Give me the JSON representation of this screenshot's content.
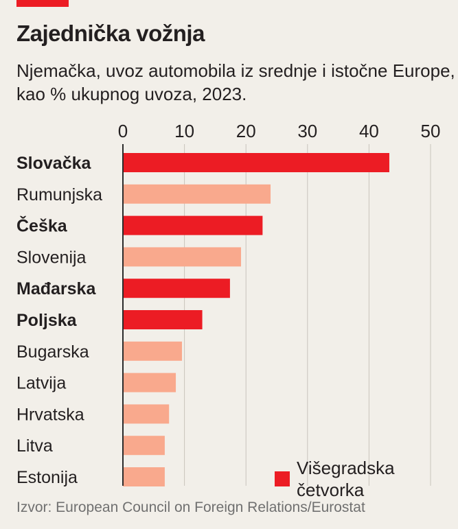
{
  "header": {
    "title": "Zajednička vožnja",
    "subtitle": "Njemačka, uvoz automobila iz srednje i istočne Europe, kao % ukupnog uvoza, 2023."
  },
  "colors": {
    "highlight": "#ec1c24",
    "other": "#f9a98d",
    "axis": "#2b2b2b",
    "grid": "#c8c4bc",
    "background": "#f2efe9"
  },
  "legend": {
    "label": "Višegradska četvorka",
    "color": "#ec1c24"
  },
  "source": "Izvor: European Council on Foreign Relations/Eurostat",
  "chart_data": {
    "type": "bar",
    "orientation": "horizontal",
    "title": "Zajednička vožnja",
    "subtitle": "Njemačka, uvoz automobila iz srednje i istočne Europe, kao % ukupnog uvoza, 2023.",
    "xlabel": "",
    "ylabel": "",
    "xlim": [
      0,
      50
    ],
    "xticks": [
      0,
      10,
      20,
      30,
      40,
      50
    ],
    "grid": true,
    "legend_position": "bottom-right",
    "categories": [
      "Slovačka",
      "Rumunjska",
      "Češka",
      "Slovenija",
      "Mađarska",
      "Poljska",
      "Bugarska",
      "Latvija",
      "Hrvatska",
      "Litva",
      "Estonija"
    ],
    "values": [
      43.3,
      24.0,
      22.7,
      19.2,
      17.4,
      12.9,
      9.6,
      8.6,
      7.5,
      6.8,
      6.8
    ],
    "highlighted": [
      true,
      false,
      true,
      false,
      true,
      true,
      false,
      false,
      false,
      false,
      false
    ],
    "highlight_group": "Višegradska četvorka"
  }
}
